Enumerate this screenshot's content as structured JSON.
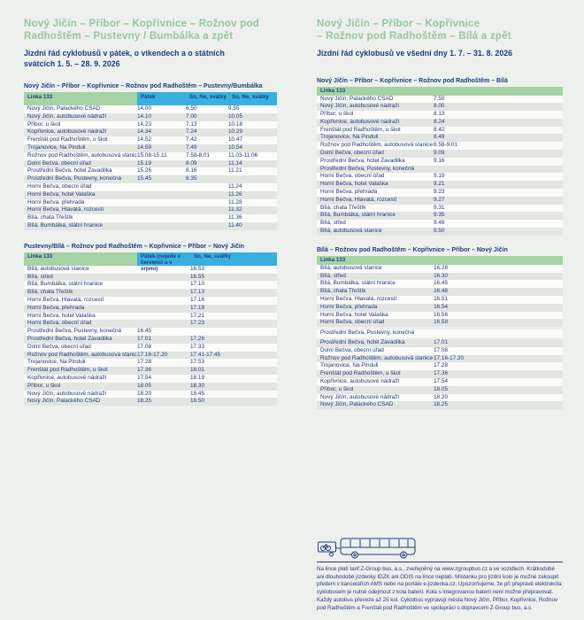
{
  "colors": {
    "background": "#eef0ed",
    "title_green": "#92c89f",
    "header_green": "#a5d3a6",
    "header_blue": "#38b0e0",
    "navy": "#1e3c7e",
    "row_gray": "#e2e5e2",
    "row_white": "#fbfcfa"
  },
  "left": {
    "title": "Nový Jičín – Příbor – Kopřivnice – Rožnov pod\nRadhoštěm – Pustevny / Bumbálka a zpět",
    "subtitle": "Jízdní řád cyklobusů v pátek, o víkendech a o státních\nsvátcích 1. 5. – 28. 9. 2026"
  },
  "right": {
    "title": "Nový Jičín – Příbor – Kopřivnice\n– Rožnov pod Radhoštěm – Bílá a zpět",
    "subtitle": "Jízdní řád cyklobusů ve všední dny 1. 7. – 31. 8. 2026"
  },
  "tables": [
    {
      "id": "lt1",
      "cls": "t-l1",
      "caption": "Nový Jičín – Příbor – Kopřivnice – Rožnov pod Radhoštěm – Pustevny/Bumbálka",
      "line_label": "Linka 133",
      "header_cols": [
        "Pátek",
        "So, Ne, svátky",
        "So, Ne, svátky"
      ],
      "gap_rows": [],
      "rows": [
        [
          "Nový Jičín, Palackého ČSAD",
          "14.00",
          "6.50",
          "9.55"
        ],
        [
          "Nový Jičín, autobusové nádraží",
          "14.10",
          "7.00",
          "10.05"
        ],
        [
          "Příbor, u škol",
          "14.23",
          "7.13",
          "10.18"
        ],
        [
          "Kopřivnice, autobusové nádraží",
          "14.34",
          "7.24",
          "10.29"
        ],
        [
          "Frenštát pod Radhoštěm, u škol",
          "14.52",
          "7.42",
          "10.47"
        ],
        [
          "Trojanovice, Na Pinduli",
          "14.59",
          "7.49",
          "10.54"
        ],
        [
          "Rožnov pod Radhoštěm, autobusová stanice",
          "15.08-15.11",
          "7.58-8.01",
          "11.03-11.06"
        ],
        [
          "Dolní Bečva, obecní úřad",
          "15.19",
          "8.09",
          "11.14"
        ],
        [
          "Prostřední Bečva, hotel Zavadilka",
          "15.26",
          "8.16",
          "11.21"
        ],
        [
          "Prostřední Bečva, Pustevny, konečná",
          "15.45",
          "8.35",
          ""
        ],
        [
          "Horní Bečva, obecní úřad",
          "",
          "",
          "11.24"
        ],
        [
          "Horní Bečva, hotel Valaška",
          "",
          "",
          "11.26"
        ],
        [
          "Horní Bečva, přehrada",
          "",
          "",
          "11.28"
        ],
        [
          "Horní Bečva, Hlavatá, rozcestí",
          "",
          "",
          "11.32"
        ],
        [
          "Bílá, chata Třeštík",
          "",
          "",
          "11.36"
        ],
        [
          "Bílá, Bumbálka, státní hranice",
          "",
          "",
          "11.40"
        ]
      ]
    },
    {
      "id": "lt2",
      "cls": "t-l2",
      "caption": "Pustevny/Bílá – Rožnov pod Radhoštěm – Kopřivnice – Příbor – Nový Jičín",
      "line_label": "Linka 133",
      "header_cols": [
        "Pátek (nejede v červenci a v srpnu)",
        "So, Ne, svátky"
      ],
      "gap_rows": [],
      "rows": [
        [
          "Bílá, autobusová stanice",
          "",
          "16.53"
        ],
        [
          "Bílá, střed",
          "",
          "16.55"
        ],
        [
          "Bílá, Bumbálka, státní hranice",
          "",
          "17.10"
        ],
        [
          "Bílá, chata Třeštík",
          "",
          "17.13"
        ],
        [
          "Horní Bečva, Hlavatá, rozcestí",
          "",
          "17.16"
        ],
        [
          "Horní Bečva, přehrada",
          "",
          "17.19"
        ],
        [
          "Horní Bečva, hotel Valaška",
          "",
          "17.21"
        ],
        [
          "Horní Bečva, obecní úřad",
          "",
          "17.23"
        ],
        [
          "Prostřední Bečva, Pustevny, konečná",
          "16.45",
          ""
        ],
        [
          "Prostřední Bečva, hotel Zavadilka",
          "17.01",
          "17.26"
        ],
        [
          "Dolní Bečva, obecní úřad",
          "17.08",
          "17.33"
        ],
        [
          "Rožnov pod Radhoštěm, autobusová stanice",
          "17.16-17.20",
          "17.41-17.45"
        ],
        [
          "Trojanovice, Na Pinduli",
          "17.28",
          "17.53"
        ],
        [
          "Frenštát pod Radhoštěm, u škol",
          "17.36",
          "18.01"
        ],
        [
          "Kopřivnice, autobusové nádraží",
          "17.54",
          "18.19"
        ],
        [
          "Příbor, u škol",
          "18.05",
          "18.30"
        ],
        [
          "Nový Jičín, autobusové nádraží",
          "18.20",
          "18.45"
        ],
        [
          "Nový Jičín, Palackého ČSAD",
          "18.25",
          "18.50"
        ]
      ]
    },
    {
      "id": "rt1",
      "cls": "t-r1",
      "caption": "Nový Jičín – Příbor – Kopřivnice – Rožnov pod Radhoštěm – Bílá",
      "line_label": "Linka 133",
      "header_cols": [],
      "gap_rows": [],
      "rows": [
        [
          "Nový Jičín, Palackého ČSAD",
          "7.50"
        ],
        [
          "Nový Jičín, autobusové nádraží",
          "8.00"
        ],
        [
          "Příbor, u škol",
          "8.13"
        ],
        [
          "Kopřivnice, autobusové nádraží",
          "8.24"
        ],
        [
          "Frenštát pod Radhoštěm, u škol",
          "8.42"
        ],
        [
          "Trojanovice, Na Pinduli",
          "8.49"
        ],
        [
          "Rožnov pod Radhoštěm, autobusová stanice",
          "8.58-9.01"
        ],
        [
          "Dolní Bečva, obecní úřad",
          "9.09"
        ],
        [
          "Prostřední Bečva, hotel Zavadilka",
          "9.16"
        ],
        [
          "Prostřední Bečva, Pustevny, konečná",
          ""
        ],
        [
          "Horní Bečva, obecní úřad",
          "9.19"
        ],
        [
          "Horní Bečva, hotel Valaška",
          "9.21"
        ],
        [
          "Horní Bečva, přehrada",
          "9.23"
        ],
        [
          "Horní Bečva, Hlavatá, rozcestí",
          "9.27"
        ],
        [
          "Bílá, chata Třeštík",
          "9.31"
        ],
        [
          "Bílá, Bumbálka, státní hranice",
          "9.35"
        ],
        [
          "Bílá, střed",
          "9.49"
        ],
        [
          "Bílá, autobusová stanice",
          "9.50"
        ]
      ]
    },
    {
      "id": "rt2",
      "cls": "t-r2",
      "caption": "Bílá – Rožnov pod Radhoštěm – Kopřivnice – Příbor – Nový Jičín",
      "line_label": "Linka 133",
      "header_cols": [],
      "gap_rows": [
        8
      ],
      "rows": [
        [
          "Bílá, autobusová stanice",
          "16.28"
        ],
        [
          "Bílá, střed",
          "16.30"
        ],
        [
          "Bílá, Bumbálka, státní hranice",
          "16.45"
        ],
        [
          "Bílá, chata Třeštík",
          "16.48"
        ],
        [
          "Horní Bečva, Hlavatá, rozcestí",
          "16.51"
        ],
        [
          "Horní Bečva, přehrada",
          "16.54"
        ],
        [
          "Horní Bečva, hotel Valaška",
          "16.56"
        ],
        [
          "Horní Bečva, obecní úřad",
          "16.58"
        ],
        [
          "Prostřední Bečva, Pustevny, konečná",
          ""
        ],
        [
          "Prostřední Bečva, hotel Zavadilka",
          "17.01"
        ],
        [
          "Dolní Bečva, obecní úřad",
          "17.08"
        ],
        [
          "Rožnov pod Radhoštěm, autobusová stanice",
          "17.16-17.20"
        ],
        [
          "Trojanovice, Na Pinduli",
          "17.28"
        ],
        [
          "Frenštát pod Radhoštěm, u škol",
          "17.36"
        ],
        [
          "Kopřivnice, autobusové nádraží",
          "17.54"
        ],
        [
          "Příbor, u škol",
          "18.05"
        ],
        [
          "Nový Jičín, autobusové nádraží",
          "18.20"
        ],
        [
          "Nový Jičín, Palackého ČSAD",
          "18.25"
        ]
      ]
    }
  ],
  "footer": {
    "icon": "bus-with-bike-trailer-icon",
    "note": "Na lince platí tarif Z-Group bus, a.s., zveřejněný na www.zgroupbus.cz a ve vozidlech. Krátkodobé ani dlouhodobé jízdenky IDZK ani ODIS na lince neplatí. Místenku pro jízdní kolo je možné zakoupit předem v kancelářích AMS nebo na portále e-jizdenka.cz. Upozorňujeme, že při přepravě elektrokola cyklobusem je nutné odejmout z kola baterii. Kola s integrovanou baterií není možné přepravovat. Každý autobus převeze až 25 kol. Cyklobus vypravují města Nový Jičín, Příbor, Kopřivnice, Rožnov pod Radhoštěm a Frenštát pod Radhoštěm ve spolupráci s dopravcem Z-Group bus, a.s."
  }
}
